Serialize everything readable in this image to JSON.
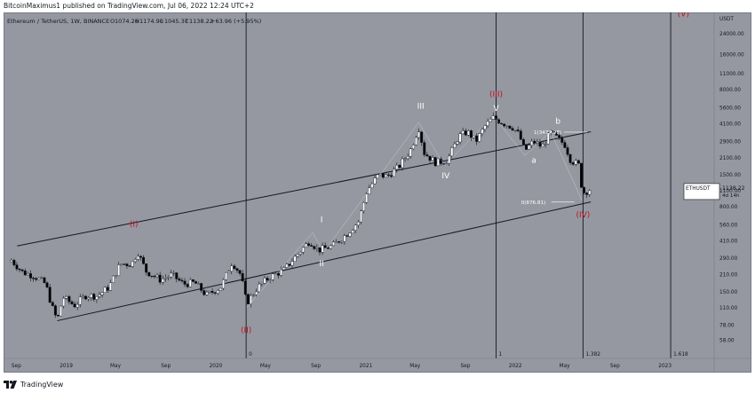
{
  "caption": "BitcoinMaximus1 published on TradingView.com, Jul 06, 2022 12:24 UTC+2",
  "footer_brand": "TradingView",
  "colors": {
    "background": "#9598a1",
    "candle_up": "#ffffff",
    "candle_down": "#000000",
    "wave_label_red": "#c1121f",
    "wave_label_white": "#ffffff",
    "line": "#131722"
  },
  "icons": {
    "logo": "tradingview-logo-icon"
  },
  "chart_data": {
    "type": "candlestick",
    "header": {
      "symbol_text": "Ethereum / TetherUS, 1W, BINANCE",
      "ohlc": [
        {
          "key": "O",
          "value": "1074.26"
        },
        {
          "key": "H",
          "value": "1174.90"
        },
        {
          "key": "L",
          "value": "1045.37"
        },
        {
          "key": "C",
          "value": "1138.22"
        }
      ],
      "change": "+63.96 (+5.95%)"
    },
    "y_axis": {
      "unit": "USDT",
      "scale": "log",
      "ticks": [
        "24000.00",
        "16000.00",
        "11000.00",
        "8000.00",
        "5600.00",
        "4100.00",
        "2900.00",
        "2100.00",
        "1500.00",
        "1100.00",
        "800.00",
        "560.00",
        "410.00",
        "290.00",
        "210.00",
        "150.00",
        "110.00",
        "78.00",
        "58.00"
      ]
    },
    "x_axis": {
      "ticks": [
        "Sep",
        "2019",
        "May",
        "Sep",
        "2020",
        "May",
        "Sep",
        "2021",
        "May",
        "Sep",
        "2022",
        "May",
        "Sep",
        "2023"
      ]
    },
    "price_label": {
      "symbol": "ETHUSDT",
      "price": "1138.22",
      "countdown": "4d 14h"
    },
    "wave_labels": [
      {
        "text": "(I)",
        "date": "2019-06",
        "price": 540,
        "color": "red"
      },
      {
        "text": "(II)",
        "date": "2020-03",
        "price": 67,
        "color": "red"
      },
      {
        "text": "(III)",
        "date": "2021-11",
        "price": 7000,
        "color": "red"
      },
      {
        "text": "(IV)",
        "date": "2022-06",
        "price": 650,
        "color": "red"
      },
      {
        "text": "(V)",
        "date": "2023-02",
        "price": 34000,
        "color": "red"
      },
      {
        "text": "I",
        "date": "2020-09",
        "price": 590,
        "color": "white"
      },
      {
        "text": "II",
        "date": "2020-09",
        "price": 250,
        "color": "white"
      },
      {
        "text": "III",
        "date": "2021-05",
        "price": 5500,
        "color": "white"
      },
      {
        "text": "IV",
        "date": "2021-07",
        "price": 1400,
        "color": "white"
      },
      {
        "text": "V",
        "date": "2021-11",
        "price": 5300,
        "color": "white"
      },
      {
        "text": "a",
        "date": "2022-02",
        "price": 1900,
        "color": "white"
      },
      {
        "text": "b",
        "date": "2022-04",
        "price": 4100,
        "color": "white"
      }
    ],
    "fib_annotations": [
      {
        "text": "1(3477.98)",
        "price": 3477.98,
        "date": "2022-02"
      },
      {
        "text": "0(876.81)",
        "price": 876.81,
        "date": "2022-01"
      }
    ],
    "time_fib_labels": [
      {
        "text": "0",
        "date": "2020-03"
      },
      {
        "text": "1",
        "date": "2021-11"
      },
      {
        "text": "1.382",
        "date": "2022-06"
      },
      {
        "text": "1.618",
        "date": "2023-01"
      }
    ],
    "series": [
      {
        "name": "ETHUSDT weekly close (approx.)",
        "points": [
          [
            "2018-08-20",
            280
          ],
          [
            "2018-09-17",
            220
          ],
          [
            "2018-10-15",
            205
          ],
          [
            "2018-11-12",
            175
          ],
          [
            "2018-11-26",
            115
          ],
          [
            "2018-12-10",
            85
          ],
          [
            "2018-12-24",
            135
          ],
          [
            "2019-01-21",
            115
          ],
          [
            "2019-02-18",
            140
          ],
          [
            "2019-03-18",
            138
          ],
          [
            "2019-04-15",
            165
          ],
          [
            "2019-05-13",
            260
          ],
          [
            "2019-06-10",
            260
          ],
          [
            "2019-06-24",
            330
          ],
          [
            "2019-07-15",
            225
          ],
          [
            "2019-08-19",
            190
          ],
          [
            "2019-09-16",
            210
          ],
          [
            "2019-10-14",
            175
          ],
          [
            "2019-11-11",
            180
          ],
          [
            "2019-12-09",
            140
          ],
          [
            "2020-01-13",
            165
          ],
          [
            "2020-02-10",
            270
          ],
          [
            "2020-03-02",
            210
          ],
          [
            "2020-03-16",
            120
          ],
          [
            "2020-04-13",
            165
          ],
          [
            "2020-05-11",
            200
          ],
          [
            "2020-06-15",
            230
          ],
          [
            "2020-07-20",
            320
          ],
          [
            "2020-08-17",
            410
          ],
          [
            "2020-09-07",
            340
          ],
          [
            "2020-10-12",
            370
          ],
          [
            "2020-11-16",
            470
          ],
          [
            "2020-12-14",
            600
          ],
          [
            "2021-01-04",
            1100
          ],
          [
            "2021-02-01",
            1500
          ],
          [
            "2021-02-22",
            1450
          ],
          [
            "2021-03-22",
            1750
          ],
          [
            "2021-04-19",
            2400
          ],
          [
            "2021-05-10",
            3800
          ],
          [
            "2021-05-24",
            2300
          ],
          [
            "2021-06-21",
            1900
          ],
          [
            "2021-07-19",
            2000
          ],
          [
            "2021-08-16",
            3200
          ],
          [
            "2021-09-06",
            3500
          ],
          [
            "2021-09-27",
            2900
          ],
          [
            "2021-10-18",
            3900
          ],
          [
            "2021-11-08",
            4600
          ],
          [
            "2021-11-29",
            4200
          ],
          [
            "2021-12-27",
            3800
          ],
          [
            "2022-01-10",
            3300
          ],
          [
            "2022-01-24",
            2400
          ],
          [
            "2022-02-14",
            2900
          ],
          [
            "2022-03-07",
            2600
          ],
          [
            "2022-03-28",
            3450
          ],
          [
            "2022-04-18",
            3000
          ],
          [
            "2022-05-02",
            2700
          ],
          [
            "2022-05-16",
            2000
          ],
          [
            "2022-06-06",
            1800
          ],
          [
            "2022-06-13",
            1050
          ],
          [
            "2022-06-27",
            1100
          ],
          [
            "2022-07-04",
            1138
          ]
        ]
      }
    ],
    "trend_lines": [
      {
        "from": [
          "2018-12-10",
          85
        ],
        "to": [
          "2022-07-04",
          880
        ]
      },
      {
        "from": [
          "2018-09-03",
          370
        ],
        "to": [
          "2022-07-04",
          3500
        ]
      }
    ]
  }
}
